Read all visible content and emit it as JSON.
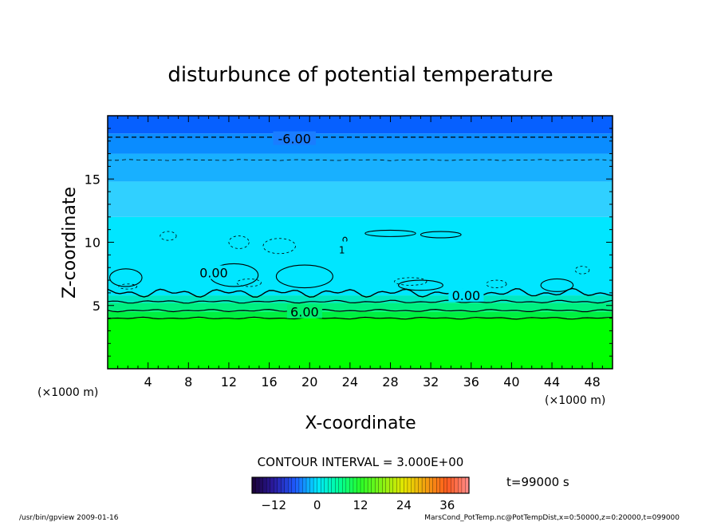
{
  "chart_data": {
    "type": "heatmap",
    "title": "disturbunce of potential temperature",
    "xlabel": "X-coordinate",
    "ylabel": "Z-coordinate",
    "x_unit": "(×1000 m)",
    "y_unit": "(×1000 m)",
    "xlim": [
      0,
      50
    ],
    "ylim": [
      0,
      20
    ],
    "x_ticks": [
      4,
      8,
      12,
      16,
      20,
      24,
      28,
      32,
      36,
      40,
      44,
      48
    ],
    "y_ticks": [
      5,
      10,
      15
    ],
    "contour_interval_text": "CONTOUR INTERVAL = 3.000E+00",
    "time_text": "t=99000 s",
    "contour_labels": [
      {
        "text": "-6.00",
        "x": 18.5,
        "z": 18.2
      },
      {
        "text": "0.00",
        "x": 10.5,
        "z": 7.6
      },
      {
        "text": "0.00",
        "x": 35.5,
        "z": 5.8
      },
      {
        "text": "6.00",
        "x": 19.5,
        "z": 4.5
      },
      {
        "text": "1",
        "x": 23.2,
        "z": 9.5
      }
    ],
    "colorbar": {
      "min": -18,
      "max": 42,
      "ticks": [
        -12,
        0,
        12,
        24,
        36
      ],
      "stops": [
        {
          "v": -18,
          "color": "#1a0033"
        },
        {
          "v": -12,
          "color": "#2a1aa0"
        },
        {
          "v": -6,
          "color": "#1e5aff"
        },
        {
          "v": 0,
          "color": "#00e6ff"
        },
        {
          "v": 6,
          "color": "#00ff9a"
        },
        {
          "v": 12,
          "color": "#28ff28"
        },
        {
          "v": 24,
          "color": "#e6e600"
        },
        {
          "v": 36,
          "color": "#ff5a1e"
        },
        {
          "v": 42,
          "color": "#ff8c8c"
        }
      ]
    },
    "field_bands": [
      {
        "z0": 0.0,
        "z1": 4.0,
        "value": 12,
        "color": "#00ff00"
      },
      {
        "z0": 4.0,
        "z1": 4.5,
        "value": 9,
        "color": "#00f040"
      },
      {
        "z0": 4.5,
        "z1": 5.2,
        "value": 6,
        "color": "#00f080"
      },
      {
        "z0": 5.2,
        "z1": 5.8,
        "value": 3,
        "color": "#00e8c0"
      },
      {
        "z0": 5.8,
        "z1": 12.0,
        "value": 0,
        "color": "#00e6ff"
      },
      {
        "z0": 12.0,
        "z1": 14.8,
        "value": -1,
        "color": "#30d0ff"
      },
      {
        "z0": 14.8,
        "z1": 17.0,
        "value": -3,
        "color": "#18b0ff"
      },
      {
        "z0": 17.0,
        "z1": 18.6,
        "value": -5,
        "color": "#0a8cff"
      },
      {
        "z0": 18.6,
        "z1": 20.0,
        "value": -7,
        "color": "#0660ff"
      }
    ]
  },
  "footer": {
    "left": "/usr/bin/gpview   2009-01-16",
    "right": "MarsCond_PotTemp.nc@PotTempDist,x=0:50000,z=0:20000,t=099000"
  }
}
